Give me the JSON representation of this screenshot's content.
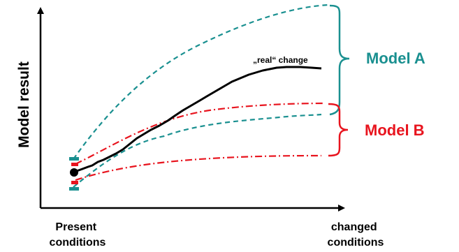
{
  "y_axis_label": "Model result",
  "x_axis_start_label": [
    "Present",
    "conditions"
  ],
  "x_axis_end_label": [
    "changed",
    "conditions"
  ],
  "real_change_label": "„real“ change",
  "model_a_label": "Model A",
  "model_b_label": "Model B",
  "colors": {
    "axis": "#000000",
    "real_change": "#000000",
    "model_a": "#1a9090",
    "model_b": "#e8141e"
  }
}
